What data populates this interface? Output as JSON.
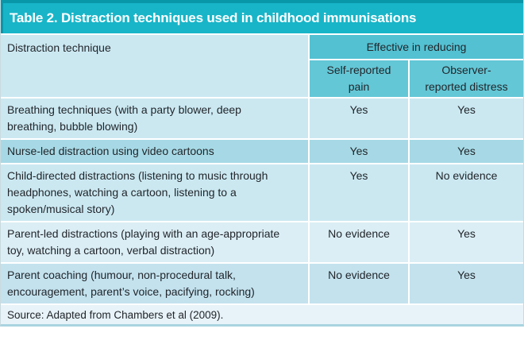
{
  "title": "Table 2. Distraction techniques used in childhood immunisations",
  "header": {
    "technique_label": "Distraction technique",
    "group_label": "Effective in reducing",
    "col_self_reported": "Self-reported\npain",
    "col_observer_reported": "Observer-\nreported distress"
  },
  "rows": [
    {
      "technique": "Breathing techniques (with a party blower, deep breathing, bubble blowing)",
      "self_reported_pain": "Yes",
      "observer_reported_distress": "Yes"
    },
    {
      "technique": "Nurse-led distraction using video cartoons",
      "self_reported_pain": "Yes",
      "observer_reported_distress": "Yes"
    },
    {
      "technique": "Child-directed distractions (listening to music through headphones, watching a cartoon, listening to a spoken/musical story)",
      "self_reported_pain": "Yes",
      "observer_reported_distress": "No evidence"
    },
    {
      "technique": "Parent-led distractions (playing with an age-appropriate toy, watching a cartoon, verbal distraction)",
      "self_reported_pain": "No evidence",
      "observer_reported_distress": "Yes"
    },
    {
      "technique": "Parent coaching (humour, non-procedural talk, encouragement, parent’s voice, pacifying, rocking)",
      "self_reported_pain": "No evidence",
      "observer_reported_distress": "Yes"
    }
  ],
  "source": "Source: Adapted from Chambers et al (2009).",
  "colors": {
    "title_bar_bg": "#18b5c8",
    "title_bar_edge": "#0897a9",
    "title_text": "#ffffff",
    "group_header_bg": "#53c1d2",
    "sub_header_bg": "#63c7d6",
    "row_light_bg": "#cbe8f1",
    "row_dark_bg": "#a6d9e5",
    "row_pale_bg": "#dbeef5",
    "row_mid_bg": "#c3e2ee",
    "source_bg": "#e7f3f8",
    "body_text": "#22262b",
    "separator": "#ffffff"
  }
}
